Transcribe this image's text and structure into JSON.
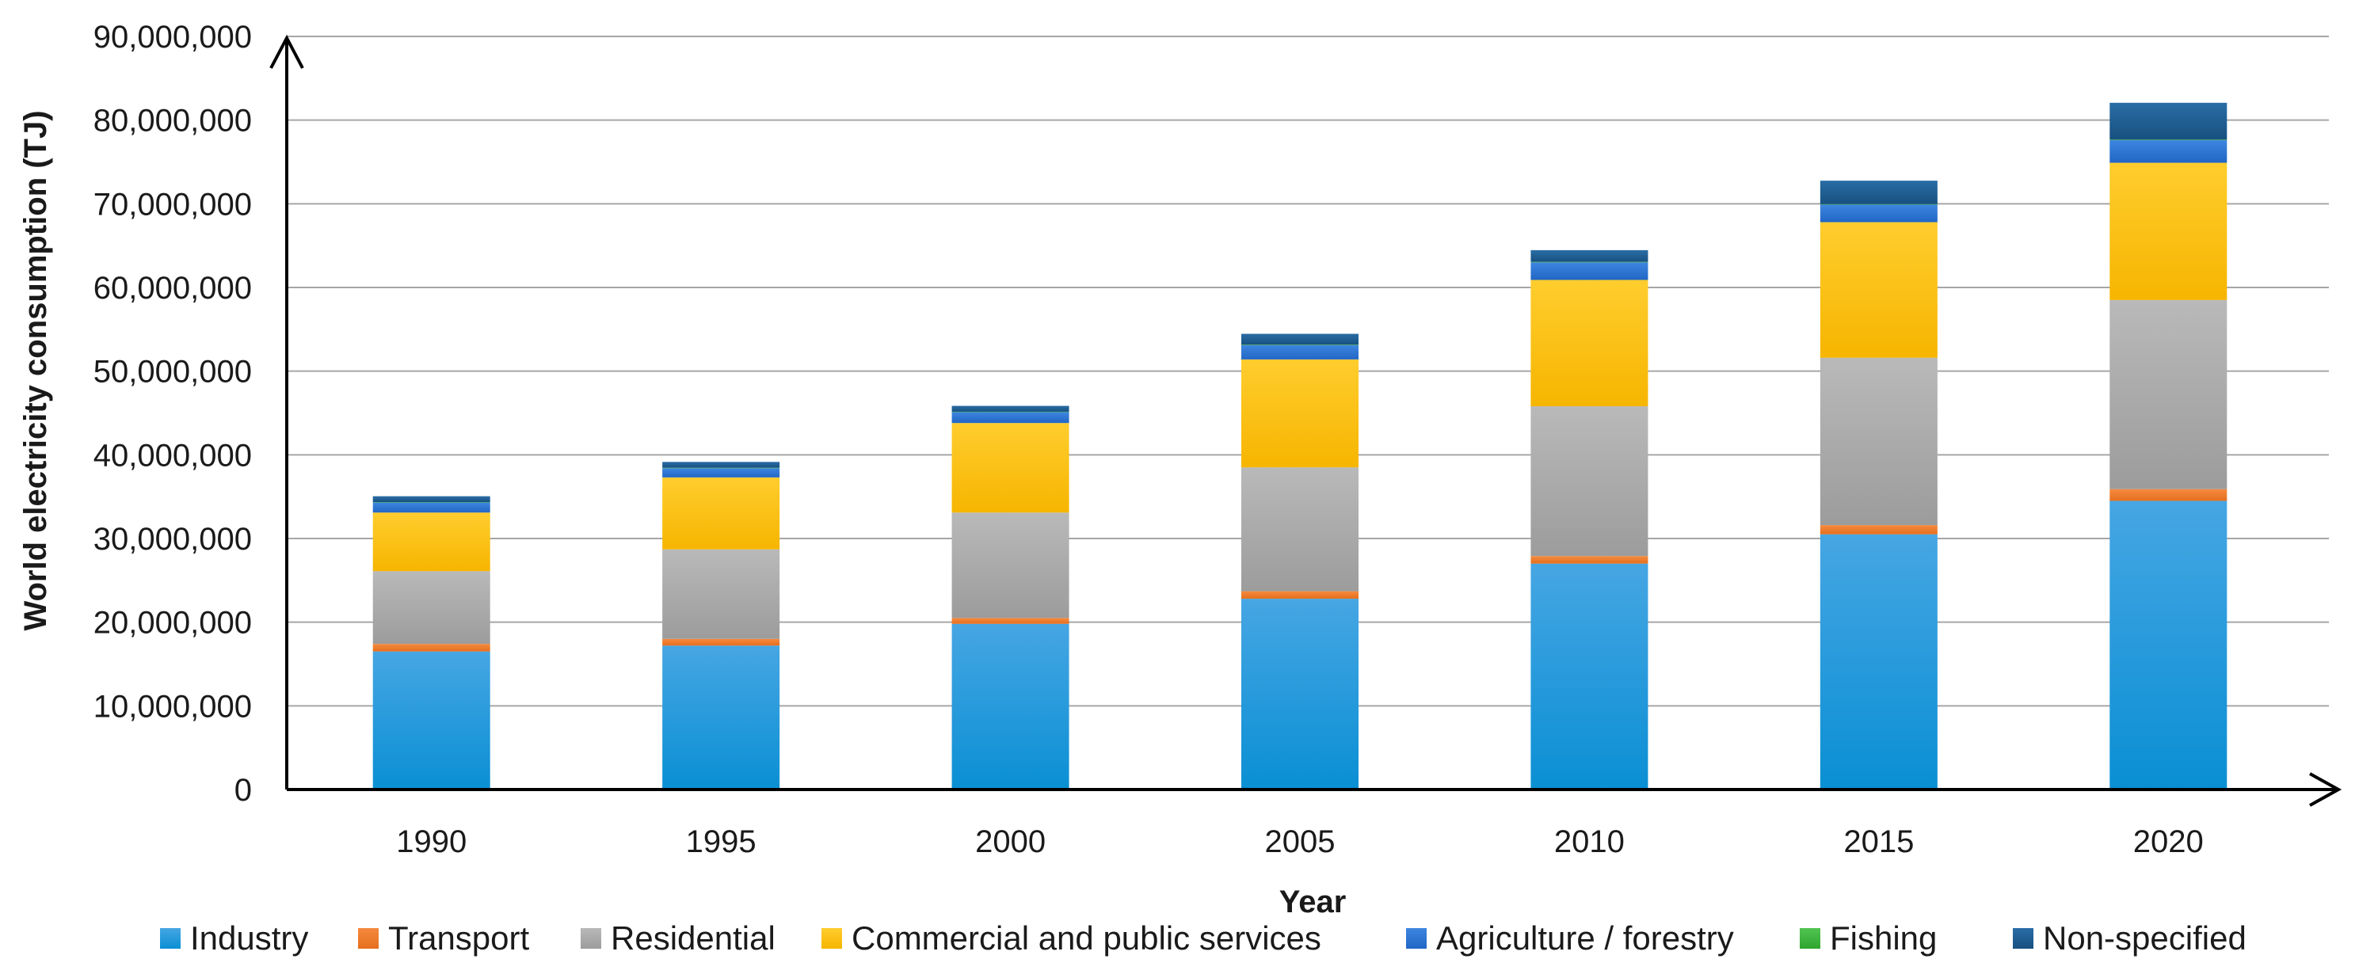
{
  "chart_data": {
    "type": "bar",
    "stacked": true,
    "title": "",
    "xlabel": "Year",
    "ylabel": "World electricity consumption (TJ)",
    "ylim": [
      0,
      90000000
    ],
    "ytick_step": 10000000,
    "ytick_labels": [
      "0",
      "10,000,000",
      "20,000,000",
      "30,000,000",
      "40,000,000",
      "50,000,000",
      "60,000,000",
      "70,000,000",
      "80,000,000",
      "90,000,000"
    ],
    "grid": true,
    "legend_position": "bottom",
    "categories": [
      "1990",
      "1995",
      "2000",
      "2005",
      "2010",
      "2015",
      "2020"
    ],
    "series": [
      {
        "name": "Industry",
        "color": "#1a9ad9",
        "values": [
          16500000,
          17200000,
          19800000,
          22800000,
          27000000,
          30500000,
          34500000
        ]
      },
      {
        "name": "Transport",
        "color": "#ed7d31",
        "values": [
          900000,
          800000,
          700000,
          900000,
          900000,
          1100000,
          1400000
        ]
      },
      {
        "name": "Residential",
        "color": "#a5a5a5",
        "values": [
          8700000,
          10700000,
          12600000,
          14800000,
          17900000,
          20000000,
          22600000
        ]
      },
      {
        "name": "Commercial and public services",
        "color": "#ffc000",
        "values": [
          7000000,
          8600000,
          10700000,
          12900000,
          15100000,
          16200000,
          16400000
        ]
      },
      {
        "name": "Agriculture / forestry",
        "color": "#2f75d6",
        "values": [
          1200000,
          1100000,
          1300000,
          1700000,
          2100000,
          2100000,
          2700000
        ]
      },
      {
        "name": "Fishing",
        "color": "#3db53d",
        "values": [
          50000,
          50000,
          50000,
          60000,
          60000,
          60000,
          70000
        ]
      },
      {
        "name": "Non-specified",
        "color": "#1f5f95",
        "values": [
          700000,
          700000,
          700000,
          1300000,
          1400000,
          2800000,
          4400000
        ]
      }
    ]
  }
}
